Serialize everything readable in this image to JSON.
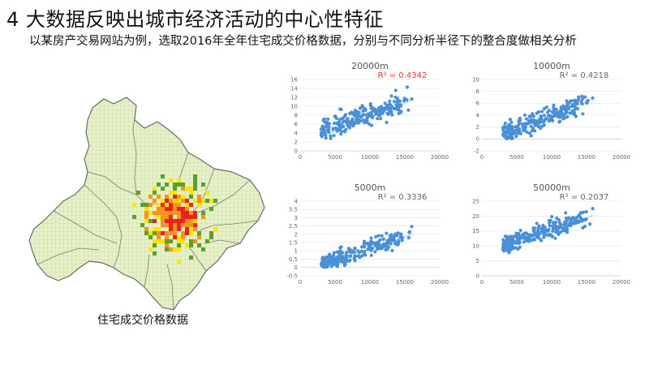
{
  "slide": {
    "title": "4 大数据反映出城市经济活动的中心性特征",
    "subtitle": "以某房产交易网站为例，选取2016年全年住宅成交价格数据，分别与不同分析半径下的整合度做相关分析",
    "map_caption": "住宅成交价格数据"
  },
  "colors": {
    "point": "#4a90d9",
    "trend": "#4a90d9",
    "r2_highlight": "#ff2a2a",
    "r2_normal": "#666666",
    "map_fill": "#e6f1c8",
    "map_grid": "#b9cf8e",
    "map_border": "#6b6b6b",
    "hot_red": "#e8231b",
    "hot_orange": "#f7941d",
    "hot_yellow": "#ffe400",
    "hot_green": "#5aa02c"
  },
  "chart_data": [
    {
      "type": "scatter",
      "title": "20000m",
      "r2": "R² = 0.4342",
      "r2_highlight": true,
      "xlim": [
        0,
        20000
      ],
      "ylim": [
        0,
        16
      ],
      "xticks": [
        0,
        5000,
        10000,
        15000,
        20000
      ],
      "yticks": [
        0,
        2,
        4,
        6,
        8,
        10,
        12,
        14,
        16
      ],
      "trend": [
        [
          3000,
          3.2
        ],
        [
          16000,
          11.3
        ]
      ],
      "gen": {
        "a": 3,
        "b": 0.00052,
        "noise": 2.4,
        "ymin": 0.1,
        "seed": 11,
        "n": 240
      }
    },
    {
      "type": "scatter",
      "title": "10000m",
      "r2": "R² = 0.4218",
      "r2_highlight": false,
      "xlim": [
        0,
        20000
      ],
      "ylim": [
        -2,
        10
      ],
      "xticks": [
        0,
        5000,
        10000,
        15000,
        20000
      ],
      "yticks": [
        -2,
        0,
        2,
        4,
        6,
        8,
        10
      ],
      "trend": [
        [
          3000,
          0.8
        ],
        [
          16000,
          6.7
        ]
      ],
      "gen": {
        "a": -0.5,
        "b": 0.00045,
        "noise": 1.6,
        "ymin": 0.05,
        "seed": 23,
        "n": 240
      }
    },
    {
      "type": "scatter",
      "title": "5000m",
      "r2": "R² = 0.3336",
      "r2_highlight": false,
      "xlim": [
        0,
        20000
      ],
      "ylim": [
        -0.5,
        4
      ],
      "xticks": [
        0,
        5000,
        10000,
        15000,
        20000
      ],
      "yticks": [
        -0.5,
        0,
        0.5,
        1,
        1.5,
        2,
        2.5,
        3,
        3.5,
        4
      ],
      "trend": [
        [
          3000,
          0.15
        ],
        [
          16000,
          2.0
        ]
      ],
      "gen": {
        "a": -0.25,
        "b": 0.000142,
        "noise": 0.55,
        "ymin": 0.02,
        "seed": 37,
        "n": 230
      }
    },
    {
      "type": "scatter",
      "title": "50000m",
      "r2": "R² = 0.2037",
      "r2_highlight": false,
      "xlim": [
        0,
        20000
      ],
      "ylim": [
        0,
        25
      ],
      "xticks": [
        0,
        5000,
        10000,
        15000,
        20000
      ],
      "yticks": [
        0,
        5,
        10,
        15,
        20,
        25
      ],
      "trend": [
        [
          3000,
          10.5
        ],
        [
          16000,
          20.2
        ]
      ],
      "gen": {
        "a": 8.2,
        "b": 0.00075,
        "noise": 3.2,
        "ymin": 5,
        "seed": 53,
        "n": 240
      }
    }
  ]
}
